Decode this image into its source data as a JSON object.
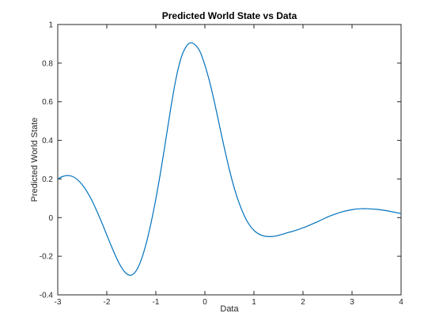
{
  "chart_data": {
    "type": "line",
    "title": "Predicted World State vs Data",
    "xlabel": "Data",
    "ylabel": "Predicted World State",
    "xlim": [
      -3,
      4
    ],
    "ylim": [
      -0.4,
      1
    ],
    "x_ticks": [
      -3,
      -2,
      -1,
      0,
      1,
      2,
      3,
      4
    ],
    "y_ticks": [
      -0.4,
      -0.2,
      0,
      0.2,
      0.4,
      0.6,
      0.8,
      1
    ],
    "x_tick_labels": [
      "-3",
      "-2",
      "-1",
      "0",
      "1",
      "2",
      "3",
      "4"
    ],
    "y_tick_labels": [
      "-0.4",
      "-0.2",
      "0",
      "0.2",
      "0.4",
      "0.6",
      "0.8",
      "1"
    ],
    "grid": false,
    "series": [
      {
        "color": "#0072bd",
        "x": [
          -3.0,
          -2.9,
          -2.8,
          -2.7,
          -2.6,
          -2.5,
          -2.4,
          -2.3,
          -2.2,
          -2.1,
          -2.0,
          -1.9,
          -1.8,
          -1.7,
          -1.6,
          -1.5,
          -1.4,
          -1.3,
          -1.2,
          -1.1,
          -1.0,
          -0.9,
          -0.8,
          -0.7,
          -0.6,
          -0.5,
          -0.4,
          -0.3,
          -0.2,
          -0.1,
          0.0,
          0.1,
          0.2,
          0.3,
          0.4,
          0.5,
          0.6,
          0.7,
          0.8,
          0.9,
          1.0,
          1.1,
          1.2,
          1.3,
          1.4,
          1.5,
          1.6,
          1.7,
          1.8,
          1.9,
          2.0,
          2.1,
          2.2,
          2.3,
          2.4,
          2.5,
          2.6,
          2.7,
          2.8,
          2.9,
          3.0,
          3.1,
          3.2,
          3.3,
          3.4,
          3.5,
          3.6,
          3.7,
          3.8,
          3.9,
          4.0
        ],
        "y": [
          0.2,
          0.213,
          0.218,
          0.213,
          0.197,
          0.17,
          0.133,
          0.087,
          0.032,
          -0.027,
          -0.09,
          -0.152,
          -0.21,
          -0.258,
          -0.29,
          -0.298,
          -0.275,
          -0.22,
          -0.137,
          -0.03,
          0.097,
          0.24,
          0.398,
          0.56,
          0.705,
          0.815,
          0.878,
          0.905,
          0.895,
          0.86,
          0.79,
          0.7,
          0.592,
          0.474,
          0.357,
          0.248,
          0.152,
          0.074,
          0.012,
          -0.035,
          -0.066,
          -0.085,
          -0.095,
          -0.098,
          -0.097,
          -0.092,
          -0.085,
          -0.077,
          -0.07,
          -0.062,
          -0.053,
          -0.043,
          -0.032,
          -0.021,
          -0.009,
          0.003,
          0.013,
          0.022,
          0.03,
          0.036,
          0.041,
          0.045,
          0.046,
          0.046,
          0.045,
          0.043,
          0.04,
          0.036,
          0.031,
          0.026,
          0.021
        ]
      }
    ]
  }
}
